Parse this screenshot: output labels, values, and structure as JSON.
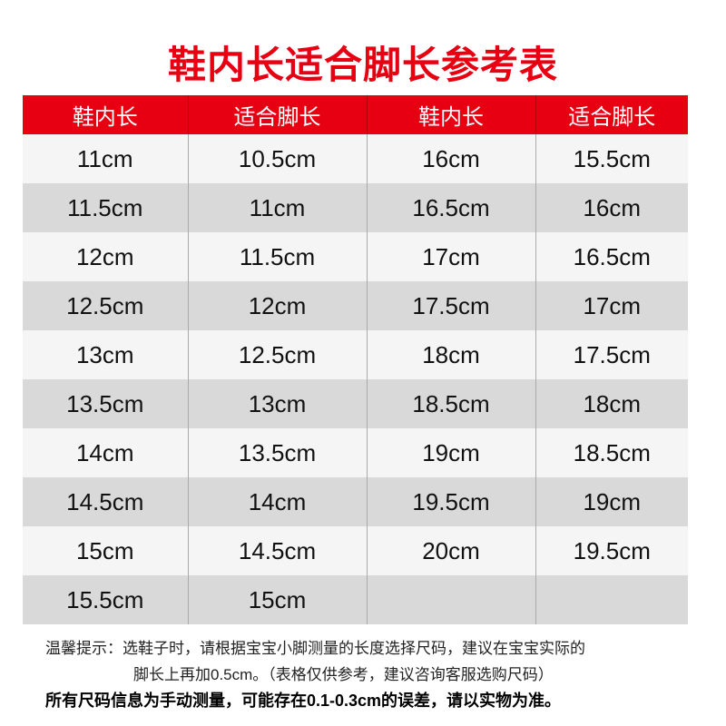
{
  "title": "鞋内长适合脚长参考表",
  "colors": {
    "accent": "#e60012",
    "row_light": "#f5f5f5",
    "row_dark": "#d9d9d9"
  },
  "table": {
    "headers": [
      "鞋内长",
      "适合脚长",
      "鞋内长",
      "适合脚长"
    ],
    "rows": [
      [
        "11cm",
        "10.5cm",
        "16cm",
        "15.5cm"
      ],
      [
        "11.5cm",
        "11cm",
        "16.5cm",
        "16cm"
      ],
      [
        "12cm",
        "11.5cm",
        "17cm",
        "16.5cm"
      ],
      [
        "12.5cm",
        "12cm",
        "17.5cm",
        "17cm"
      ],
      [
        "13cm",
        "12.5cm",
        "18cm",
        "17.5cm"
      ],
      [
        "13.5cm",
        "13cm",
        "18.5cm",
        "18cm"
      ],
      [
        "14cm",
        "13.5cm",
        "19cm",
        "18.5cm"
      ],
      [
        "14.5cm",
        "14cm",
        "19.5cm",
        "19cm"
      ],
      [
        "15cm",
        "14.5cm",
        "20cm",
        "19.5cm"
      ],
      [
        "15.5cm",
        "15cm",
        "",
        ""
      ]
    ]
  },
  "notes": {
    "line1": "温馨提示：选鞋子时，请根据宝宝小脚测量的长度选择尺码，建议在宝宝实际的",
    "line2": "脚长上再加0.5cm。（表格仅供参考，建议咨询客服选购尺码）",
    "line3": "所有尺码信息为手动测量，可能存在0.1-0.3cm的误差，请以实物为准。"
  }
}
